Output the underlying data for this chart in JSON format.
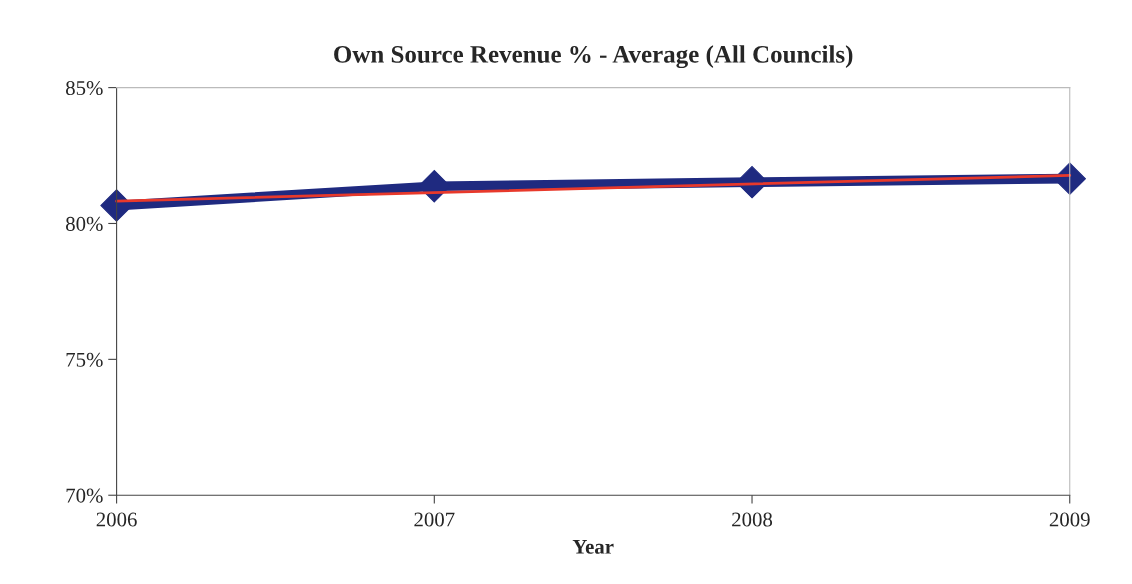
{
  "chart_data": {
    "type": "line",
    "title": "Own Source Revenue % - Average (All Councils)",
    "xlabel": "Year",
    "x": [
      2006,
      2007,
      2008,
      2009
    ],
    "series": [
      {
        "color": "#1f2a80",
        "values": [
          80.66,
          81.37,
          81.52,
          81.65
        ],
        "marker": "diamond"
      },
      {
        "type": "line",
        "color": "#e8392b",
        "x": [
          2006,
          2009
        ],
        "values": [
          80.82,
          81.77
        ],
        "marker": "none"
      }
    ],
    "xlim": [
      2006,
      2009
    ],
    "xticks": [
      2006,
      2007,
      2008,
      2009
    ],
    "ylim": [
      70,
      85
    ],
    "yticks": [
      {
        "value": 70,
        "label": "70%"
      },
      {
        "value": 75,
        "label": "75%"
      },
      {
        "value": 80,
        "label": "80%"
      },
      {
        "value": 85,
        "label": "85%"
      }
    ],
    "grid": false
  }
}
